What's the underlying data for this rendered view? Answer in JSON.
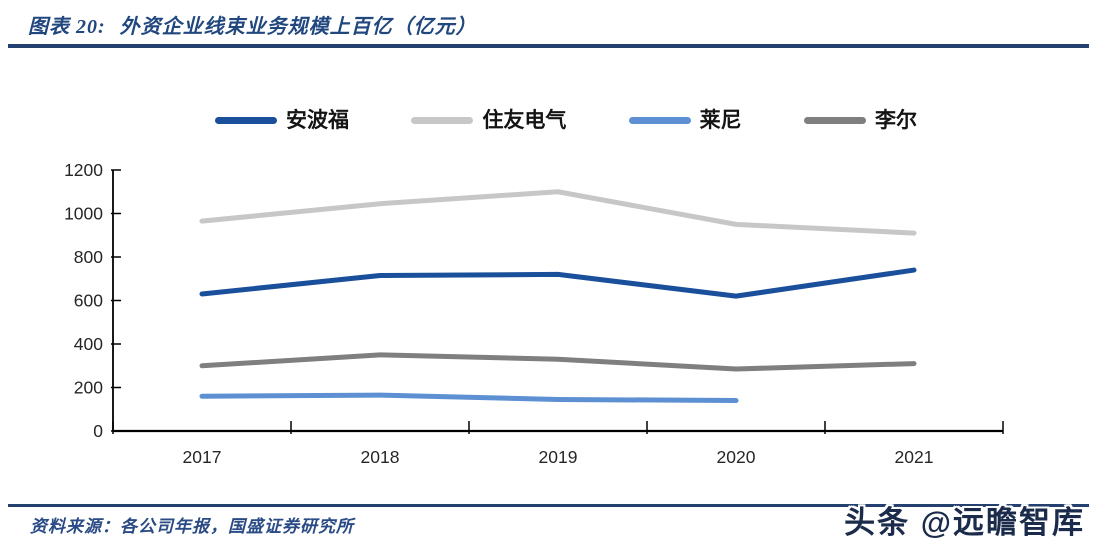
{
  "header": {
    "figure_label": "图表 20:",
    "title": "外资企业线束业务规模上百亿（亿元）"
  },
  "footer": {
    "source": "资料来源：各公司年报，国盛证券研究所",
    "watermark": "头条 @远瞻智库"
  },
  "colors": {
    "accent_navy": "#23406E",
    "title_text": "#21477F",
    "source_text": "#2A4B85",
    "watermark_text": "#1B2B4B",
    "axis_line": "#000000",
    "axis_label": "#262626"
  },
  "chart_data": {
    "type": "line",
    "title": "外资企业线束业务规模上百亿（亿元）",
    "categories": [
      "2017",
      "2018",
      "2019",
      "2020",
      "2021"
    ],
    "series": [
      {
        "name": "安波福",
        "color": "#1A4F9B",
        "values": [
          630,
          715,
          720,
          620,
          740
        ]
      },
      {
        "name": "住友电气",
        "color": "#C7C7C7",
        "values": [
          965,
          1045,
          1100,
          950,
          910
        ]
      },
      {
        "name": "莱尼",
        "color": "#5C90D2",
        "values": [
          160,
          165,
          145,
          140,
          null
        ]
      },
      {
        "name": "李尔",
        "color": "#7F7F7F",
        "values": [
          300,
          350,
          330,
          285,
          310
        ]
      }
    ],
    "ylim": [
      0,
      1200
    ],
    "ytick_step": 200,
    "y_tick_labels": [
      "0",
      "200",
      "400",
      "600",
      "800",
      "1000",
      "1200"
    ],
    "xlabel": "",
    "ylabel": "",
    "grid": false,
    "legend_position": "top"
  }
}
